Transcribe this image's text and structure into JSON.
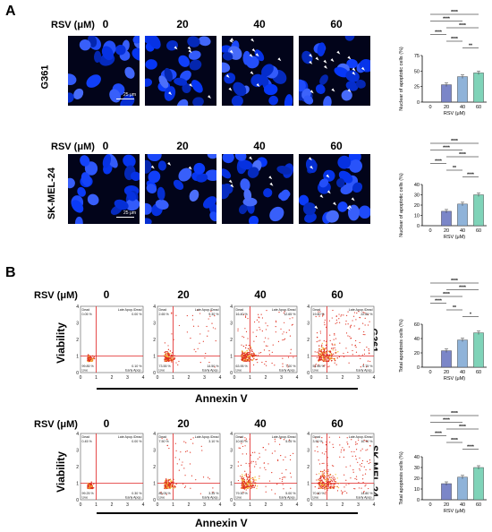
{
  "panel_a": {
    "letter": "A",
    "rows": [
      {
        "label": "G361",
        "dose_header": "RSV (μM)",
        "doses": [
          "0",
          "20",
          "40",
          "60"
        ],
        "scale_bar": "25 μm"
      },
      {
        "label": "SK-MEL-24",
        "dose_header": "RSV (μM)",
        "doses": [
          "0",
          "20",
          "40",
          "60"
        ],
        "scale_bar": "25 μm"
      }
    ]
  },
  "panel_b": {
    "letter": "B",
    "axis_y": "Viability",
    "axis_x": "Annexin V",
    "quadrant_labels": {
      "ul": "Dead",
      "ur": "Late Apop./Dead",
      "ll": "Live",
      "lr": "Early Apop."
    },
    "tick_labels": [
      "0",
      "1",
      "2",
      "3",
      "4"
    ],
    "rows": [
      {
        "label": "G361",
        "dose_header": "RSV (μM)",
        "doses": [
          "0",
          "20",
          "40",
          "60"
        ],
        "plots": [
          {
            "ul": "0.05 %",
            "ur": "0.00 %",
            "ll": "99.85 %",
            "lr": "0.10 %"
          },
          {
            "ul": "2.65 %",
            "ur": "9.30 %",
            "ll": "73.55 %",
            "lr": "14.50 %"
          },
          {
            "ul": "16.40 %",
            "ur": "12.65 %",
            "ll": "63.95 %",
            "lr": "7.00 %"
          },
          {
            "ul": "19.80 %",
            "ur": "22.80 %",
            "ll": "51.65 %",
            "lr": "5.75 %"
          }
        ]
      },
      {
        "label": "SK-MEL-24",
        "dose_header": "RSV (μM)",
        "doses": [
          "0",
          "20",
          "40",
          "60"
        ],
        "plots": [
          {
            "ul": "0.45 %",
            "ur": "0.00 %",
            "ll": "99.25 %",
            "lr": "0.30 %"
          },
          {
            "ul": "7.50 %",
            "ur": "3.10 %",
            "ll": "86.05 %",
            "lr": "3.35 %"
          },
          {
            "ul": "10.60 %",
            "ur": "5.05 %",
            "ll": "79.30 %",
            "lr": "5.00 %"
          },
          {
            "ul": "3.90 %",
            "ur": "10.70 %",
            "ll": "70.60 %",
            "lr": "14.80 %"
          }
        ]
      }
    ]
  },
  "chart_data": [
    {
      "type": "bar",
      "categories": [
        "0",
        "20",
        "40",
        "60"
      ],
      "values": [
        0,
        28,
        41,
        47
      ],
      "ylabel": "Nuclear of apoptotic cells (%)",
      "xlabel": "RSV (μM)",
      "ylim": [
        0,
        75
      ],
      "yticks": [
        "0",
        "25",
        "50",
        "75"
      ],
      "colors": [
        "#ffffff",
        "#7b86c8",
        "#8fb3d9",
        "#7fd3b8"
      ],
      "significance": [
        {
          "from": 0,
          "to": 3,
          "text": "****"
        },
        {
          "from": 0,
          "to": 2,
          "text": "****"
        },
        {
          "from": 1,
          "to": 3,
          "text": "****"
        },
        {
          "from": 0,
          "to": 1,
          "text": "****"
        },
        {
          "from": 1,
          "to": 2,
          "text": "****"
        },
        {
          "from": 2,
          "to": 3,
          "text": "**"
        }
      ]
    },
    {
      "type": "bar",
      "categories": [
        "0",
        "20",
        "40",
        "60"
      ],
      "values": [
        0,
        14,
        21,
        30
      ],
      "ylabel": "Nuclear of apoptotic cells (%)",
      "xlabel": "RSV (μM)",
      "ylim": [
        0,
        40
      ],
      "yticks": [
        "0",
        "10",
        "20",
        "30",
        "40"
      ],
      "colors": [
        "#ffffff",
        "#7b86c8",
        "#8fb3d9",
        "#7fd3b8"
      ],
      "significance": [
        {
          "from": 0,
          "to": 3,
          "text": "****"
        },
        {
          "from": 0,
          "to": 2,
          "text": "****"
        },
        {
          "from": 1,
          "to": 3,
          "text": "****"
        },
        {
          "from": 0,
          "to": 1,
          "text": "****"
        },
        {
          "from": 1,
          "to": 2,
          "text": "**"
        },
        {
          "from": 2,
          "to": 3,
          "text": "****"
        }
      ]
    },
    {
      "type": "bar",
      "categories": [
        "0",
        "20",
        "40",
        "60"
      ],
      "values": [
        0,
        23,
        38,
        48
      ],
      "ylabel": "Total apoptosis cells (%)",
      "xlabel": "RSV (μM)",
      "ylim": [
        0,
        60
      ],
      "yticks": [
        "0",
        "20",
        "40",
        "60"
      ],
      "colors": [
        "#ffffff",
        "#7b86c8",
        "#8fb3d9",
        "#7fd3b8"
      ],
      "significance": [
        {
          "from": 0,
          "to": 3,
          "text": "****"
        },
        {
          "from": 1,
          "to": 3,
          "text": "****"
        },
        {
          "from": 0,
          "to": 2,
          "text": "****"
        },
        {
          "from": 0,
          "to": 1,
          "text": "****"
        },
        {
          "from": 1,
          "to": 2,
          "text": "**"
        },
        {
          "from": 2,
          "to": 3,
          "text": "*"
        }
      ]
    },
    {
      "type": "bar",
      "categories": [
        "0",
        "20",
        "40",
        "60"
      ],
      "values": [
        0,
        15,
        21,
        30
      ],
      "ylabel": "Total apoptosis cells (%)",
      "xlabel": "RSV (μM)",
      "ylim": [
        0,
        40
      ],
      "yticks": [
        "0",
        "10",
        "20",
        "30",
        "40"
      ],
      "colors": [
        "#ffffff",
        "#7b86c8",
        "#8fb3d9",
        "#7fd3b8"
      ],
      "significance": [
        {
          "from": 0,
          "to": 3,
          "text": "****"
        },
        {
          "from": 0,
          "to": 2,
          "text": "****"
        },
        {
          "from": 1,
          "to": 3,
          "text": "****"
        },
        {
          "from": 0,
          "to": 1,
          "text": "****"
        },
        {
          "from": 1,
          "to": 2,
          "text": "****"
        },
        {
          "from": 2,
          "to": 3,
          "text": "****"
        }
      ]
    }
  ]
}
